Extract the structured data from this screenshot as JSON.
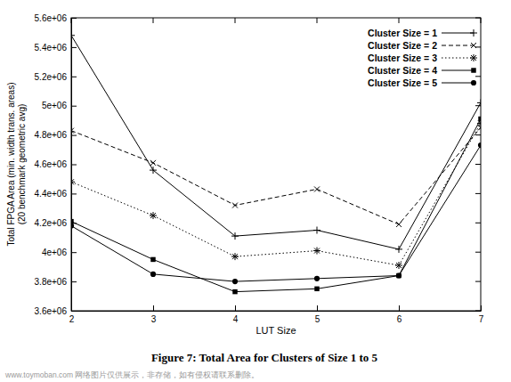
{
  "chart_data": {
    "type": "line",
    "title": "Figure 7: Total Area for Clusters of Size 1 to 5",
    "x_label": "LUT Size",
    "y_label": [
      "Total FPGA Area (min. width trans. areas)",
      "(20 benchmark geometric avg)"
    ],
    "annotations": [
      "www.toymoban.com 网络图片仅供展示，非存储，如有侵权请联系删除。"
    ],
    "x": [
      2,
      3,
      4,
      5,
      6,
      7
    ],
    "xlim": [
      2,
      7
    ],
    "xticks": [
      2,
      3,
      4,
      5,
      6,
      7
    ],
    "ylim": [
      3600000,
      5600000
    ],
    "yticks": [
      {
        "value": 3600000,
        "label": "3.6e+06"
      },
      {
        "value": 3800000,
        "label": "3.8e+06"
      },
      {
        "value": 4000000,
        "label": "4e+06"
      },
      {
        "value": 4200000,
        "label": "4.2e+06"
      },
      {
        "value": 4400000,
        "label": "4.4e+06"
      },
      {
        "value": 4600000,
        "label": "4.6e+06"
      },
      {
        "value": 4800000,
        "label": "4.8e+06"
      },
      {
        "value": 5000000,
        "label": "5e+06"
      },
      {
        "value": 5200000,
        "label": "5.2e+06"
      },
      {
        "value": 5400000,
        "label": "5.4e+06"
      },
      {
        "value": 5600000,
        "label": "5.6e+06"
      }
    ],
    "grid": false,
    "legend": "upper right",
    "series": [
      {
        "name": "Cluster Size = 1",
        "color": "#000000",
        "marker": "plus",
        "line_style": "solid",
        "values": [
          5480000,
          4560000,
          4110000,
          4150000,
          4020000,
          5020000
        ]
      },
      {
        "name": "Cluster Size = 2",
        "color": "#000000",
        "marker": "cross",
        "line_style": "dashed",
        "values": [
          4830000,
          4610000,
          4320000,
          4430000,
          4190000,
          4850000
        ]
      },
      {
        "name": "Cluster Size = 3",
        "color": "#000000",
        "marker": "asterisk",
        "line_style": "dotted",
        "values": [
          4480000,
          4250000,
          3970000,
          4010000,
          3910000,
          4880000
        ]
      },
      {
        "name": "Cluster Size = 4",
        "color": "#000000",
        "marker": "square",
        "line_style": "solid",
        "values": [
          4210000,
          3950000,
          3730000,
          3750000,
          3840000,
          4910000
        ]
      },
      {
        "name": "Cluster Size = 5",
        "color": "#000000",
        "marker": "circle",
        "line_style": "solid",
        "values": [
          4180000,
          3850000,
          3800000,
          3820000,
          3840000,
          4730000
        ]
      }
    ]
  }
}
